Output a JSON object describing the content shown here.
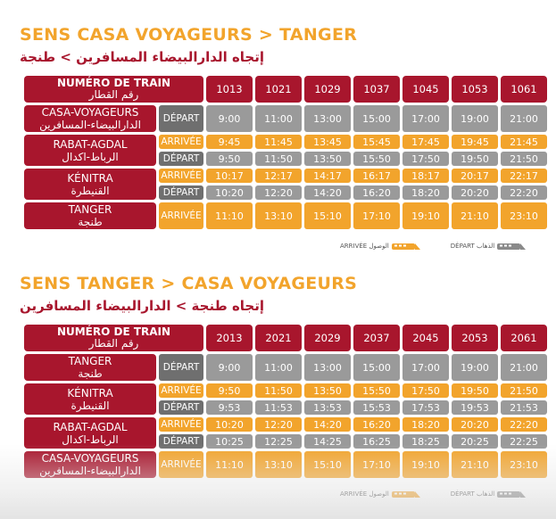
{
  "sections": [
    {
      "title_fr": "SENS CASA VOYAGEURS > TANGER",
      "title_ar": "إتجاه الدارالبيضاء المسافرين > طنجة",
      "header_fr": "NUMÉRO DE TRAIN",
      "header_ar": "رقم القطار",
      "trains": [
        "1013",
        "1021",
        "1029",
        "1037",
        "1045",
        "1053",
        "1061"
      ],
      "stations": [
        {
          "fr": "CASA-VOYAGEURS",
          "ar": "الدارالبيضاء-المسافرين",
          "rows": [
            {
              "type": "dep",
              "label": "DÉPART",
              "times": [
                "9:00",
                "11:00",
                "13:00",
                "15:00",
                "17:00",
                "19:00",
                "21:00"
              ]
            }
          ]
        },
        {
          "fr": "RABAT-AGDAL",
          "ar": "الرباط-اكدال",
          "rows": [
            {
              "type": "arr",
              "label": "ARRIVÉE",
              "times": [
                "9:45",
                "11:45",
                "13:45",
                "15:45",
                "17:45",
                "19:45",
                "21:45"
              ]
            },
            {
              "type": "dep",
              "label": "DÉPART",
              "times": [
                "9:50",
                "11:50",
                "13:50",
                "15:50",
                "17:50",
                "19:50",
                "21:50"
              ]
            }
          ]
        },
        {
          "fr": "KÉNITRA",
          "ar": "القنيطرة",
          "rows": [
            {
              "type": "arr",
              "label": "ARRIVÉE",
              "times": [
                "10:17",
                "12:17",
                "14:17",
                "16:17",
                "18:17",
                "20:17",
                "22:17"
              ]
            },
            {
              "type": "dep",
              "label": "DÉPART",
              "times": [
                "10:20",
                "12:20",
                "14:20",
                "16:20",
                "18:20",
                "20:20",
                "22:20"
              ]
            }
          ]
        },
        {
          "fr": "TANGER",
          "ar": "طنجة",
          "rows": [
            {
              "type": "arr",
              "label": "ARRIVÉE",
              "times": [
                "11:10",
                "13:10",
                "15:10",
                "17:10",
                "19:10",
                "21:10",
                "23:10"
              ]
            }
          ]
        }
      ],
      "legend_dep": "DÉPART الذهاب",
      "legend_arr": "ARRIVÉE الوصول"
    },
    {
      "title_fr": "SENS TANGER > CASA VOYAGEURS",
      "title_ar": "إتجاه طنجة > الدارالبيضاء المسافرين",
      "header_fr": "NUMÉRO DE TRAIN",
      "header_ar": "رقم القطار",
      "trains": [
        "2013",
        "2021",
        "2029",
        "2037",
        "2045",
        "2053",
        "2061"
      ],
      "stations": [
        {
          "fr": "TANGER",
          "ar": "طنجة",
          "rows": [
            {
              "type": "dep",
              "label": "DÉPART",
              "times": [
                "9:00",
                "11:00",
                "13:00",
                "15:00",
                "17:00",
                "19:00",
                "21:00"
              ]
            }
          ]
        },
        {
          "fr": "KÉNITRA",
          "ar": "القنيطرة",
          "rows": [
            {
              "type": "arr",
              "label": "ARRIVÉE",
              "times": [
                "9:50",
                "11:50",
                "13:50",
                "15:50",
                "17:50",
                "19:50",
                "21:50"
              ]
            },
            {
              "type": "dep",
              "label": "DÉPART",
              "times": [
                "9:53",
                "11:53",
                "13:53",
                "15:53",
                "17:53",
                "19:53",
                "21:53"
              ]
            }
          ]
        },
        {
          "fr": "RABAT-AGDAL",
          "ar": "الرباط-اكدال",
          "rows": [
            {
              "type": "arr",
              "label": "ARRIVÉE",
              "times": [
                "10:20",
                "12:20",
                "14:20",
                "16:20",
                "18:20",
                "20:20",
                "22:20"
              ]
            },
            {
              "type": "dep",
              "label": "DÉPART",
              "times": [
                "10:25",
                "12:25",
                "14:25",
                "16:25",
                "18:25",
                "20:25",
                "22:25"
              ]
            }
          ]
        },
        {
          "fr": "CASA-VOYAGEURS",
          "ar": "الدارالبيضاء-المسافرين",
          "rows": [
            {
              "type": "arr",
              "label": "ARRIVÉE",
              "times": [
                "11:10",
                "13:10",
                "15:10",
                "17:10",
                "19:10",
                "21:10",
                "23:10"
              ]
            }
          ]
        }
      ],
      "legend_dep": "DÉPART الذهاب",
      "legend_arr": "ARRIVÉE الوصول"
    }
  ],
  "colors": {
    "brand_red": "#a8162d",
    "arrival_orange": "#f2a42c",
    "departure_grey": "#9a9a9a"
  }
}
